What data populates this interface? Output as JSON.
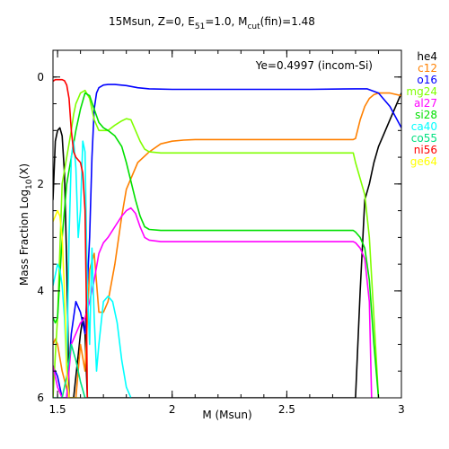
{
  "chart_data": {
    "type": "line",
    "title": "15Msun, Z=0, E₅₁=1.0, M_cut(fin)=1.48",
    "title_parts": {
      "a": "15Msun, Z=0, E",
      "a_sub": "51",
      "b": "=1.0, M",
      "b_sub": "cut",
      "c": "(fin)=1.48"
    },
    "annotation": "Ye=0.4997 (incom-Si)",
    "xlabel": "M (Msun)",
    "ylabel_main": "Mass Fraction Log",
    "ylabel_sub": "10",
    "ylabel_end": "(X)",
    "xlim": [
      1.48,
      3.0
    ],
    "ylim": [
      -6,
      0.5
    ],
    "xticks": [
      1.5,
      2,
      2.5,
      3
    ],
    "xtick_labels": [
      "1.5",
      "2",
      "2.5",
      "3"
    ],
    "yticks": [
      0,
      -2,
      -4,
      -6
    ],
    "ytick_labels": [
      "0",
      "2",
      "4",
      "6"
    ],
    "legend_position": "right-outside",
    "series": [
      {
        "name": "he4",
        "color": "#000000",
        "x": [
          1.48,
          1.49,
          1.5,
          1.51,
          1.52,
          1.53,
          1.54,
          1.55,
          1.56,
          1.57,
          1.58,
          1.59,
          1.6,
          1.61,
          1.62,
          1.63,
          1.64,
          2.8,
          2.82,
          2.84,
          2.86,
          2.88,
          2.9,
          2.92,
          2.95,
          2.98,
          3.0
        ],
        "y": [
          -2.3,
          -1.2,
          -1.0,
          -0.95,
          -1.1,
          -1.8,
          -3.5,
          -6.0,
          -6.0,
          -6.0,
          -5.6,
          -5.2,
          -4.8,
          -4.5,
          -4.8,
          -6.0,
          -6.0,
          -6.0,
          -4.0,
          -2.3,
          -2.0,
          -1.6,
          -1.3,
          -1.1,
          -0.8,
          -0.5,
          -0.3
        ]
      },
      {
        "name": "c12",
        "color": "#ff8000",
        "x": [
          1.48,
          1.49,
          1.5,
          1.52,
          1.55,
          1.58,
          1.6,
          1.62,
          1.64,
          1.66,
          1.68,
          1.7,
          1.72,
          1.75,
          1.78,
          1.8,
          1.85,
          1.9,
          1.95,
          2.0,
          2.05,
          2.1,
          2.2,
          2.4,
          2.6,
          2.79,
          2.8,
          2.82,
          2.84,
          2.86,
          2.88,
          2.9,
          2.95,
          3.0
        ],
        "y": [
          -5.0,
          -4.9,
          -5.0,
          -5.5,
          -6.0,
          -6.0,
          -5.0,
          -5.5,
          -3.6,
          -3.3,
          -4.4,
          -4.4,
          -4.2,
          -3.5,
          -2.6,
          -2.1,
          -1.6,
          -1.4,
          -1.25,
          -1.2,
          -1.18,
          -1.17,
          -1.17,
          -1.17,
          -1.17,
          -1.17,
          -1.15,
          -0.8,
          -0.55,
          -0.4,
          -0.33,
          -0.3,
          -0.3,
          -0.35
        ]
      },
      {
        "name": "o16",
        "color": "#0000ff",
        "x": [
          1.48,
          1.5,
          1.52,
          1.54,
          1.56,
          1.58,
          1.6,
          1.62,
          1.64,
          1.65,
          1.66,
          1.67,
          1.68,
          1.7,
          1.72,
          1.75,
          1.8,
          1.85,
          1.9,
          2.0,
          2.2,
          2.4,
          2.6,
          2.8,
          2.85,
          2.9,
          2.95,
          3.0
        ],
        "y": [
          -5.4,
          -5.6,
          -6.0,
          -6.0,
          -4.8,
          -4.2,
          -4.4,
          -4.8,
          -3.0,
          -1.5,
          -0.6,
          -0.3,
          -0.2,
          -0.15,
          -0.14,
          -0.14,
          -0.16,
          -0.2,
          -0.22,
          -0.23,
          -0.23,
          -0.23,
          -0.23,
          -0.22,
          -0.22,
          -0.3,
          -0.55,
          -0.95
        ]
      },
      {
        "name": "mg24",
        "color": "#80ff00",
        "x": [
          1.48,
          1.49,
          1.5,
          1.52,
          1.54,
          1.56,
          1.57,
          1.58,
          1.59,
          1.6,
          1.62,
          1.64,
          1.66,
          1.68,
          1.7,
          1.72,
          1.75,
          1.78,
          1.8,
          1.82,
          1.84,
          1.86,
          1.88,
          1.9,
          1.95,
          2.0,
          2.2,
          2.4,
          2.6,
          2.79,
          2.8,
          2.84,
          2.86,
          2.88,
          2.9
        ],
        "y": [
          -6.0,
          -5.2,
          -4.5,
          -2.0,
          -1.5,
          -1.0,
          -0.7,
          -0.5,
          -0.4,
          -0.3,
          -0.25,
          -0.4,
          -0.8,
          -1.0,
          -1.0,
          -1.0,
          -0.9,
          -0.82,
          -0.78,
          -0.8,
          -1.0,
          -1.2,
          -1.35,
          -1.4,
          -1.42,
          -1.42,
          -1.42,
          -1.42,
          -1.42,
          -1.42,
          -1.6,
          -2.2,
          -3.0,
          -4.5,
          -6.0
        ]
      },
      {
        "name": "al27",
        "color": "#ff00ff",
        "x": [
          1.48,
          1.5,
          1.52,
          1.54,
          1.56,
          1.58,
          1.6,
          1.62,
          1.64,
          1.66,
          1.68,
          1.7,
          1.72,
          1.75,
          1.78,
          1.8,
          1.82,
          1.84,
          1.86,
          1.88,
          1.9,
          1.95,
          2.0,
          2.2,
          2.4,
          2.6,
          2.79,
          2.8,
          2.82,
          2.84,
          2.86,
          2.87
        ],
        "y": [
          -5.4,
          -5.8,
          -6.0,
          -6.0,
          -5.0,
          -4.8,
          -4.6,
          -4.5,
          -4.2,
          -3.8,
          -3.3,
          -3.1,
          -3.0,
          -2.8,
          -2.6,
          -2.5,
          -2.45,
          -2.55,
          -2.8,
          -3.0,
          -3.05,
          -3.08,
          -3.08,
          -3.08,
          -3.08,
          -3.08,
          -3.08,
          -3.1,
          -3.2,
          -3.4,
          -4.2,
          -6.0
        ]
      },
      {
        "name": "si28",
        "color": "#00e000",
        "x": [
          1.48,
          1.49,
          1.5,
          1.52,
          1.54,
          1.56,
          1.58,
          1.6,
          1.62,
          1.64,
          1.66,
          1.68,
          1.7,
          1.72,
          1.75,
          1.78,
          1.8,
          1.84,
          1.86,
          1.88,
          1.9,
          1.95,
          2.0,
          2.2,
          2.4,
          2.6,
          2.79,
          2.8,
          2.82,
          2.84,
          2.86,
          2.88,
          2.9
        ],
        "y": [
          -4.5,
          -4.6,
          -4.5,
          -3.0,
          -2.0,
          -1.5,
          -1.0,
          -0.6,
          -0.3,
          -0.35,
          -0.6,
          -0.85,
          -0.95,
          -1.0,
          -1.1,
          -1.3,
          -1.6,
          -2.3,
          -2.6,
          -2.8,
          -2.85,
          -2.87,
          -2.87,
          -2.87,
          -2.87,
          -2.87,
          -2.87,
          -2.9,
          -3.0,
          -3.2,
          -3.8,
          -5.0,
          -6.0
        ]
      },
      {
        "name": "ca40",
        "color": "#00ffff",
        "x": [
          1.48,
          1.49,
          1.5,
          1.51,
          1.52,
          1.53,
          1.54,
          1.55,
          1.56,
          1.57,
          1.58,
          1.59,
          1.6,
          1.61,
          1.62,
          1.63,
          1.64,
          1.65,
          1.66,
          1.67,
          1.68,
          1.7,
          1.72,
          1.74,
          1.76,
          1.78,
          1.8,
          1.82
        ],
        "y": [
          -3.9,
          -3.7,
          -3.5,
          -3.6,
          -3.9,
          -4.5,
          -5.5,
          -3.0,
          -1.5,
          -1.2,
          -1.7,
          -3.0,
          -2.5,
          -1.2,
          -1.4,
          -4.0,
          -5.0,
          -3.2,
          -4.5,
          -5.5,
          -5.0,
          -4.2,
          -4.1,
          -4.2,
          -4.6,
          -5.3,
          -5.8,
          -6.0
        ]
      },
      {
        "name": "co55",
        "color": "#00e080",
        "x": [
          1.48,
          1.5,
          1.52,
          1.54,
          1.56,
          1.58,
          1.6,
          1.62,
          1.63,
          1.64
        ],
        "y": [
          -6.0,
          -6.0,
          -6.0,
          -5.6,
          -5.0,
          -5.3,
          -5.7,
          -6.0,
          -6.0,
          -6.0
        ]
      },
      {
        "name": "ni56",
        "color": "#ff0000",
        "x": [
          1.48,
          1.49,
          1.5,
          1.51,
          1.52,
          1.53,
          1.54,
          1.55,
          1.56,
          1.57,
          1.58,
          1.59,
          1.6,
          1.61,
          1.62,
          1.625,
          1.63
        ],
        "y": [
          -0.08,
          -0.05,
          -0.05,
          -0.05,
          -0.05,
          -0.07,
          -0.15,
          -0.4,
          -1.0,
          -1.4,
          -1.5,
          -1.55,
          -1.6,
          -1.8,
          -2.5,
          -4.0,
          -6.0
        ]
      },
      {
        "name": "ge64",
        "color": "#ffff00",
        "x": [
          1.48,
          1.49,
          1.5,
          1.51,
          1.52,
          1.53,
          1.54,
          1.55,
          1.56,
          1.57,
          1.58,
          1.59,
          1.6
        ],
        "y": [
          -2.7,
          -2.6,
          -2.5,
          -2.6,
          -3.0,
          -4.0,
          -5.5,
          -6.0,
          -6.0,
          -6.0,
          -6.0,
          -6.0,
          -6.0
        ]
      }
    ]
  }
}
